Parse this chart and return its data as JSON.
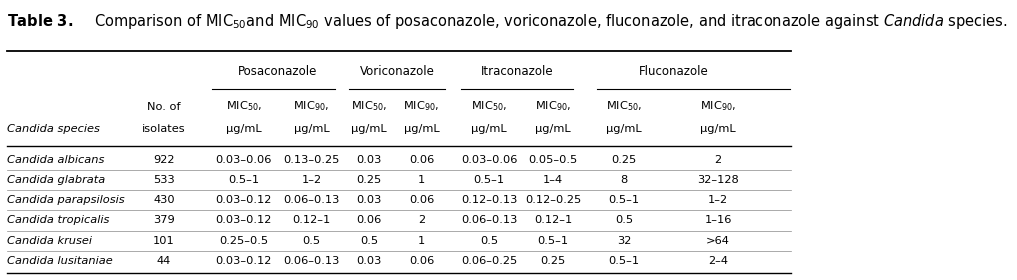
{
  "drug_groups": [
    "Posaconazole",
    "Voriconazole",
    "Itraconazole",
    "Fluconazole"
  ],
  "rows": [
    [
      "Candida albicans",
      "922",
      "0.03–0.06",
      "0.13–0.25",
      "0.03",
      "0.06",
      "0.03–0.06",
      "0.05–0.5",
      "0.25",
      "2"
    ],
    [
      "Candida glabrata",
      "533",
      "0.5–1",
      "1–2",
      "0.25",
      "1",
      "0.5–1",
      "1–4",
      "8",
      "32–128"
    ],
    [
      "Candida parapsilosis",
      "430",
      "0.03–0.12",
      "0.06–0.13",
      "0.03",
      "0.06",
      "0.12–0.13",
      "0.12–0.25",
      "0.5–1",
      "1–2"
    ],
    [
      "Candida tropicalis",
      "379",
      "0.03–0.12",
      "0.12–1",
      "0.06",
      "2",
      "0.06–0.13",
      "0.12–1",
      "0.5",
      "1–16"
    ],
    [
      "Candida krusei",
      "101",
      "0.25–0.5",
      "0.5",
      "0.5",
      "1",
      "0.5",
      "0.5–1",
      "32",
      ">64"
    ],
    [
      "Candida lusitaniae",
      "44",
      "0.03–0.12",
      "0.06–0.13",
      "0.03",
      "0.06",
      "0.06–0.25",
      "0.25",
      "0.5–1",
      "2–4"
    ]
  ],
  "bg_color": "#ffffff",
  "title_fontsize": 10.5,
  "cell_fontsize": 8.2,
  "header_fontsize": 8.2,
  "group_fontsize": 8.5
}
